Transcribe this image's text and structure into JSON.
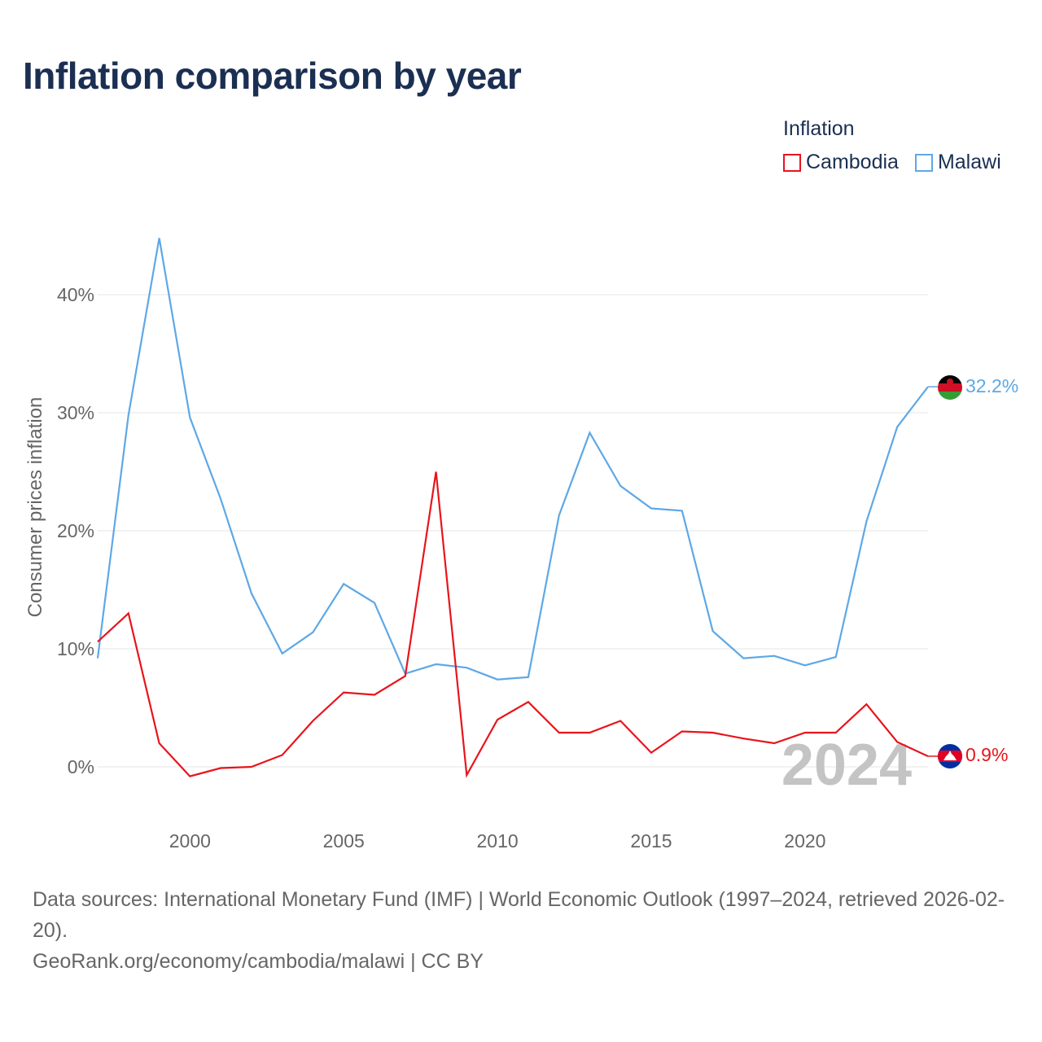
{
  "title": "Inflation comparison by year",
  "legend": {
    "title": "Inflation",
    "items": [
      {
        "label": "Cambodia",
        "color": "#e8141c"
      },
      {
        "label": "Malawi",
        "color": "#5ea8e6"
      }
    ]
  },
  "footer": {
    "sources": "Data sources: International Monetary Fund (IMF) | World Economic Outlook (1997–2024, retrieved 2026-02-20).",
    "link": "GeoRank.org/economy/cambodia/malawi | CC BY"
  },
  "chart_data": {
    "type": "line",
    "title": "Inflation comparison by year",
    "ylabel": "Consumer prices inflation",
    "xlabel": "",
    "xlim": [
      1997,
      2024
    ],
    "ylim": [
      -5,
      46
    ],
    "yticks": [
      0,
      10,
      20,
      30,
      40
    ],
    "ytick_labels": [
      "0%",
      "10%",
      "20%",
      "30%",
      "40%"
    ],
    "xticks": [
      2000,
      2005,
      2010,
      2015,
      2020
    ],
    "xtick_labels": [
      "2000",
      "2005",
      "2010",
      "2015",
      "2020"
    ],
    "year_watermark": "2024",
    "x": [
      1997,
      1998,
      1999,
      2000,
      2001,
      2002,
      2003,
      2004,
      2005,
      2006,
      2007,
      2008,
      2009,
      2010,
      2011,
      2012,
      2013,
      2014,
      2015,
      2016,
      2017,
      2018,
      2019,
      2020,
      2021,
      2022,
      2023,
      2024
    ],
    "series": [
      {
        "name": "Cambodia",
        "color": "#e8141c",
        "end_label": "0.9%",
        "flag": "cambodia-flag",
        "values": [
          10.6,
          13.0,
          2.0,
          -0.8,
          -0.1,
          0.0,
          1.0,
          3.9,
          6.3,
          6.1,
          7.7,
          25.0,
          -0.7,
          4.0,
          5.5,
          2.9,
          2.9,
          3.9,
          1.2,
          3.0,
          2.9,
          2.4,
          2.0,
          2.9,
          2.9,
          5.3,
          2.1,
          0.9
        ]
      },
      {
        "name": "Malawi",
        "color": "#5ea8e6",
        "end_label": "32.2%",
        "flag": "malawi-flag",
        "values": [
          9.2,
          29.8,
          44.8,
          29.6,
          22.7,
          14.7,
          9.6,
          11.4,
          15.5,
          13.9,
          7.9,
          8.7,
          8.4,
          7.4,
          7.6,
          21.3,
          28.3,
          23.8,
          21.9,
          21.7,
          11.5,
          9.2,
          9.4,
          8.6,
          9.3,
          20.8,
          28.8,
          32.2
        ]
      }
    ]
  }
}
